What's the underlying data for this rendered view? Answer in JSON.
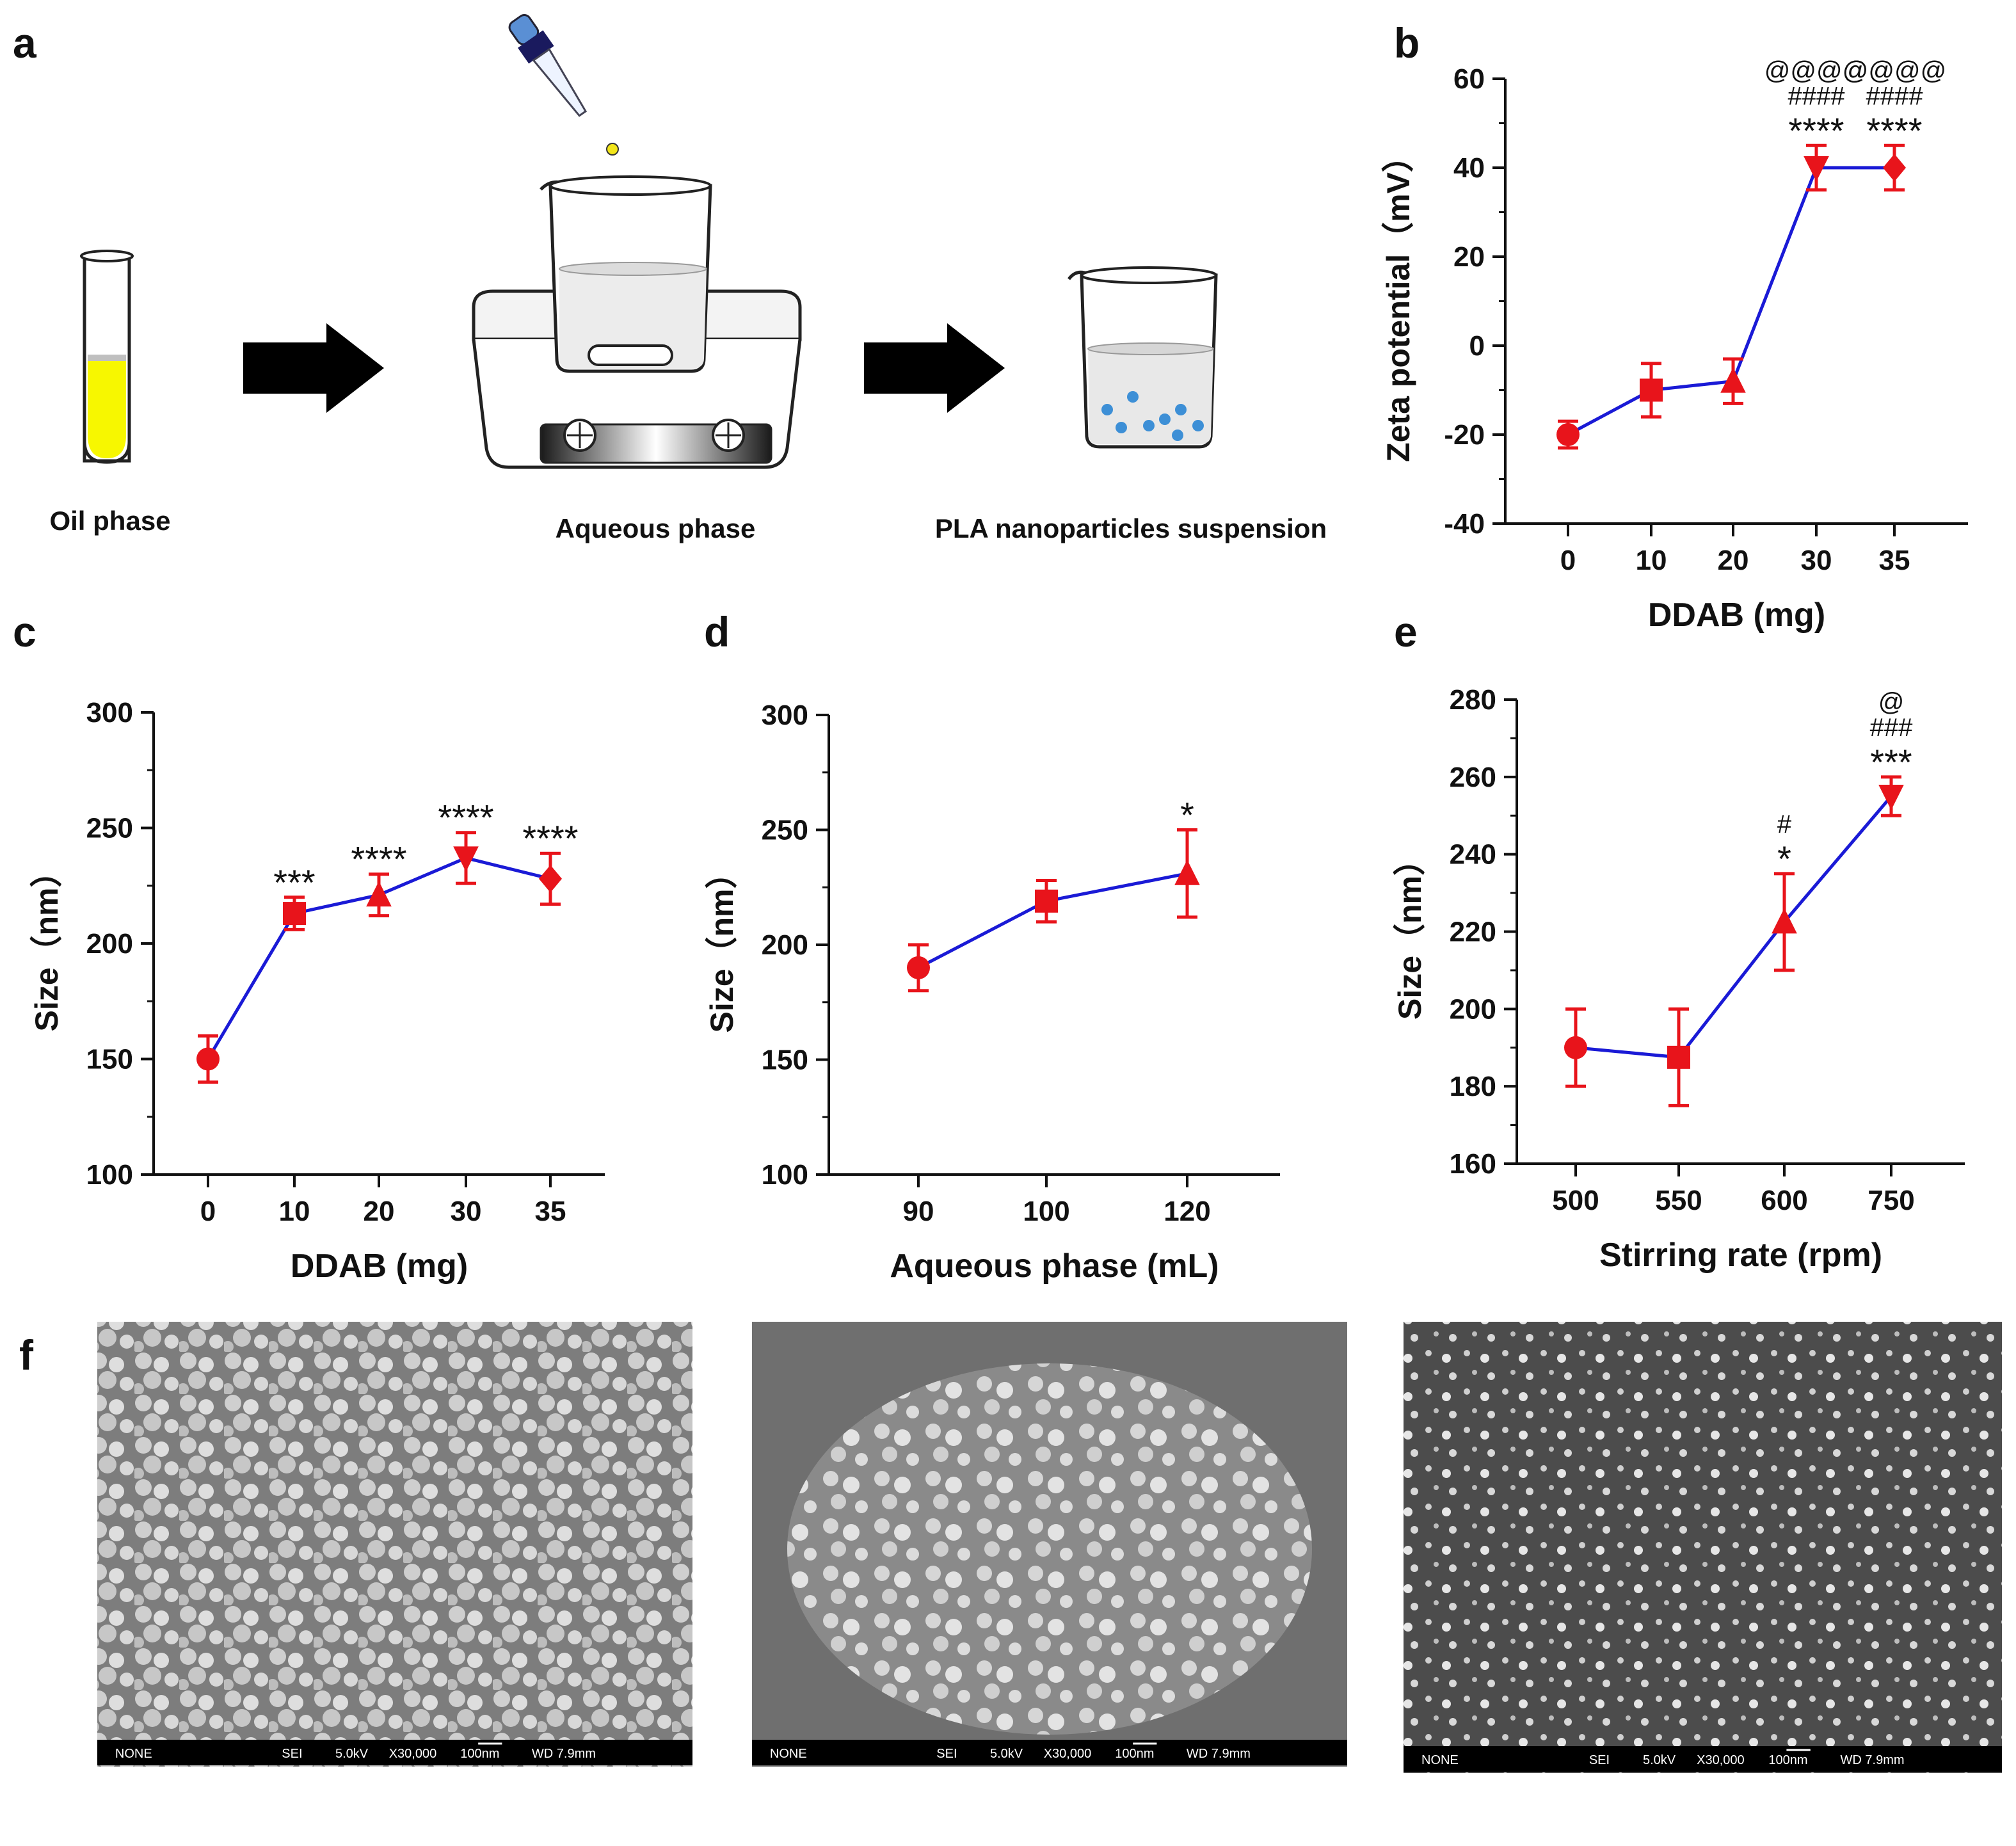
{
  "panels": {
    "a": {
      "letter": "a",
      "labels": [
        "Oil phase",
        "Aqueous phase",
        "PLA nanoparticles suspension"
      ]
    },
    "b": {
      "letter": "b"
    },
    "c": {
      "letter": "c"
    },
    "d": {
      "letter": "d"
    },
    "e": {
      "letter": "e"
    },
    "f": {
      "letter": "f",
      "sem_info": [
        "NONE",
        "SEI",
        "5.0kV",
        "X30,000",
        "100nm",
        "WD 7.9mm"
      ]
    }
  },
  "colors": {
    "line": "#1a1ad6",
    "marker": "#e8141b",
    "axis": "#111111"
  },
  "chart_data": [
    {
      "id": "b",
      "type": "line",
      "xlabel": "DDAB (mg)",
      "ylabel": "Zeta potential（mV）",
      "categories": [
        "0",
        "10",
        "20",
        "30",
        "35"
      ],
      "values": [
        -20,
        -10,
        -8,
        40,
        40
      ],
      "errors": [
        3,
        6,
        5,
        5,
        5
      ],
      "markers": [
        "circle",
        "square",
        "triangle-up",
        "triangle-down",
        "diamond"
      ],
      "ylim": [
        -40,
        60
      ],
      "ymajor": [
        -40,
        -20,
        0,
        20,
        40,
        60
      ],
      "yminor": 10,
      "annotations": [
        {
          "index": 3,
          "lines": [
            "@@@@",
            "####",
            "****"
          ]
        },
        {
          "index": 4,
          "lines": [
            "@@@@",
            "####",
            "****"
          ]
        }
      ]
    },
    {
      "id": "c",
      "type": "line",
      "xlabel": "DDAB (mg)",
      "ylabel": "Size（nm）",
      "categories": [
        "0",
        "10",
        "20",
        "30",
        "35"
      ],
      "values": [
        150,
        213,
        221,
        237,
        228
      ],
      "errors": [
        10,
        7,
        9,
        11,
        11
      ],
      "markers": [
        "circle",
        "square",
        "triangle-up",
        "triangle-down",
        "diamond"
      ],
      "ylim": [
        100,
        300
      ],
      "ymajor": [
        100,
        150,
        200,
        250,
        300
      ],
      "yminor": 25,
      "annotations": [
        {
          "index": 1,
          "lines": [
            "***"
          ]
        },
        {
          "index": 2,
          "lines": [
            "****"
          ]
        },
        {
          "index": 3,
          "lines": [
            "****"
          ]
        },
        {
          "index": 4,
          "lines": [
            "****"
          ]
        }
      ]
    },
    {
      "id": "d",
      "type": "line",
      "xlabel": "Aqueous phase (mL)",
      "ylabel": "Size（nm）",
      "categories": [
        "90",
        "100",
        "120"
      ],
      "values": [
        190,
        219,
        231
      ],
      "errors": [
        10,
        9,
        19
      ],
      "markers": [
        "circle",
        "square",
        "triangle-up"
      ],
      "ylim": [
        100,
        300
      ],
      "ymajor": [
        100,
        150,
        200,
        250,
        300
      ],
      "yminor": 25,
      "annotations": [
        {
          "index": 2,
          "lines": [
            "*"
          ]
        }
      ]
    },
    {
      "id": "e",
      "type": "line",
      "xlabel": "Stirring rate (rpm)",
      "ylabel": "Size（nm）",
      "categories": [
        "500",
        "550",
        "600",
        "750"
      ],
      "values": [
        190,
        187.5,
        222.5,
        255
      ],
      "errors": [
        10,
        12.5,
        12.5,
        5
      ],
      "markers": [
        "circle",
        "square",
        "triangle-up",
        "triangle-down"
      ],
      "ylim": [
        160,
        280
      ],
      "ymajor": [
        160,
        180,
        200,
        220,
        240,
        260,
        280
      ],
      "yminor": 10,
      "annotations": [
        {
          "index": 2,
          "lines": [
            "#",
            "*"
          ]
        },
        {
          "index": 3,
          "lines": [
            "@",
            "###",
            "***"
          ]
        }
      ]
    }
  ]
}
